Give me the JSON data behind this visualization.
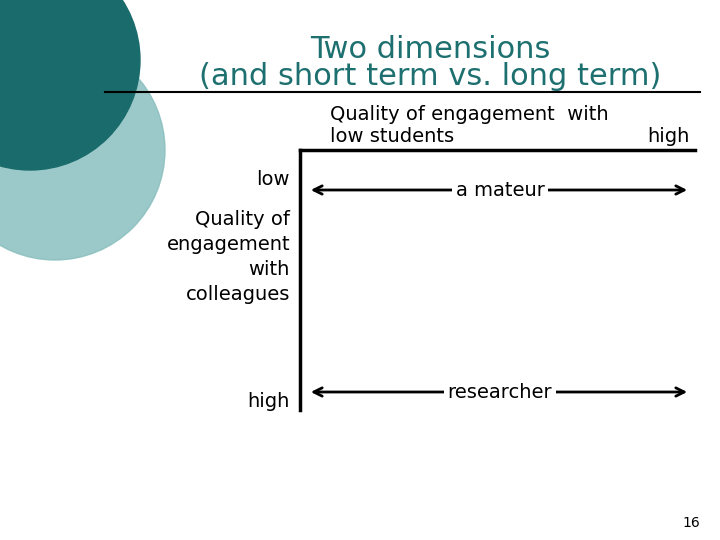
{
  "title_line1": "Two dimensions",
  "title_line2": "(and short term vs. long term)",
  "title_color": "#1E7070",
  "title_fontsize": 22,
  "bg_color": "#FFFFFF",
  "page_number": "16",
  "horiz_axis_label_line1": "Quality of engagement  with",
  "horiz_axis_label_line2": "low students",
  "horiz_axis_label_high": "high",
  "vert_axis_label_low": "low",
  "vert_axis_label_multiline": "Quality of\nengagement\nwith\ncolleagues",
  "vert_axis_label_high": "high",
  "arrow1_label": "a mateur",
  "arrow2_label": "researcher",
  "circle_color1": "#1A6B6B",
  "circle_color2": "#8ABFBF",
  "separator_line_color": "#000000",
  "arrow_color": "#000000",
  "axis_line_color": "#000000",
  "label_fontsize": 14,
  "arrow_label_fontsize": 14,
  "page_fontsize": 10
}
